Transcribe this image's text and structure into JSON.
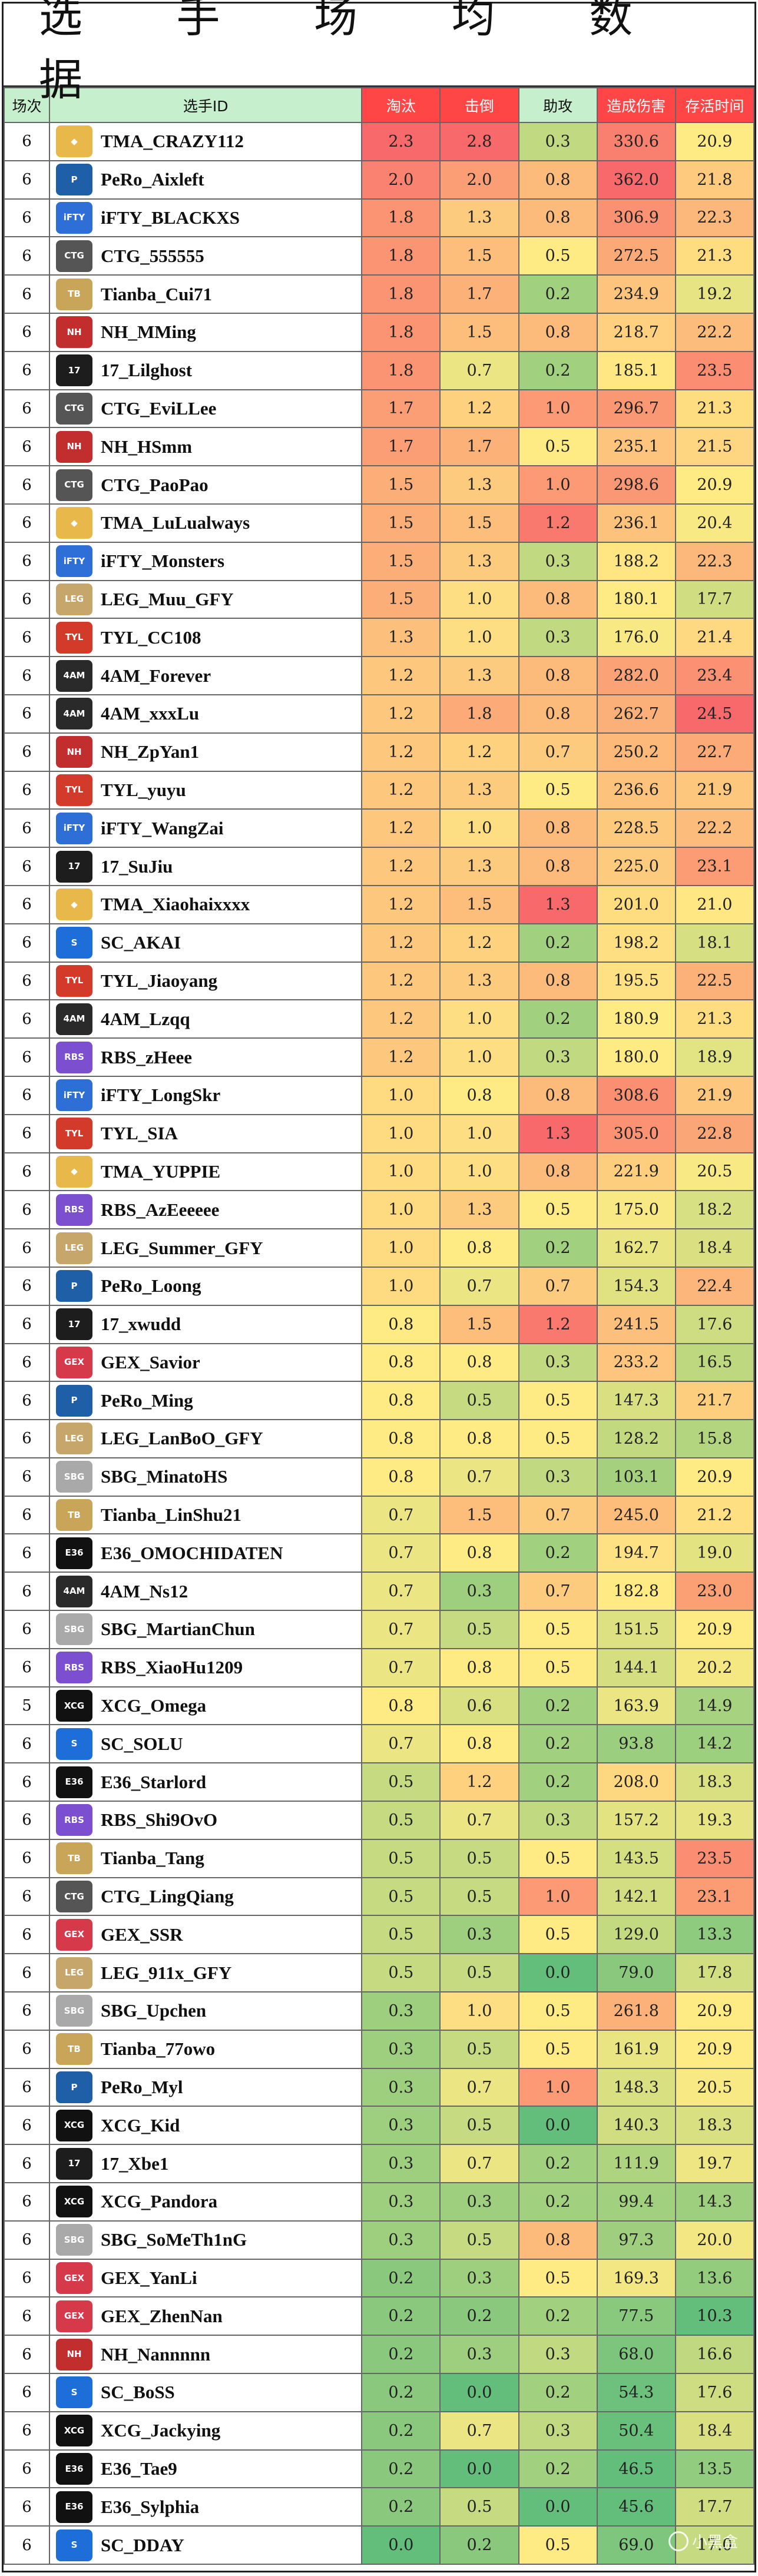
{
  "title": "选 手 场 均 数 据",
  "columns": [
    "场次",
    "选手ID",
    "淘汰",
    "击倒",
    "助攻",
    "造成伤害",
    "存活时间"
  ],
  "rows": [
    {
      "g": "6",
      "id": "TMA_CRAZY112",
      "team": "TMA",
      "k": "2.3",
      "d": "2.8",
      "a": "0.3",
      "dmg": "330.6",
      "t": "20.9"
    },
    {
      "g": "6",
      "id": "PeRo_Aixleft",
      "team": "PeRo",
      "k": "2.0",
      "d": "2.0",
      "a": "0.8",
      "dmg": "362.0",
      "t": "21.8"
    },
    {
      "g": "6",
      "id": "iFTY_BLACKXS",
      "team": "iFTY",
      "k": "1.8",
      "d": "1.3",
      "a": "0.8",
      "dmg": "306.9",
      "t": "22.3"
    },
    {
      "g": "6",
      "id": "CTG_555555",
      "team": "CTG",
      "k": "1.8",
      "d": "1.5",
      "a": "0.5",
      "dmg": "272.5",
      "t": "21.3"
    },
    {
      "g": "6",
      "id": "Tianba_Cui71",
      "team": "Tianba",
      "k": "1.8",
      "d": "1.7",
      "a": "0.2",
      "dmg": "234.9",
      "t": "19.2"
    },
    {
      "g": "6",
      "id": "NH_MMing",
      "team": "NH",
      "k": "1.8",
      "d": "1.5",
      "a": "0.8",
      "dmg": "218.7",
      "t": "22.2"
    },
    {
      "g": "6",
      "id": "17_Lilghost",
      "team": "17",
      "k": "1.8",
      "d": "0.7",
      "a": "0.2",
      "dmg": "185.1",
      "t": "23.5"
    },
    {
      "g": "6",
      "id": "CTG_EviLLee",
      "team": "CTG",
      "k": "1.7",
      "d": "1.2",
      "a": "1.0",
      "dmg": "296.7",
      "t": "21.3"
    },
    {
      "g": "6",
      "id": "NH_HSmm",
      "team": "NH",
      "k": "1.7",
      "d": "1.7",
      "a": "0.5",
      "dmg": "235.1",
      "t": "21.5"
    },
    {
      "g": "6",
      "id": "CTG_PaoPao",
      "team": "CTG",
      "k": "1.5",
      "d": "1.3",
      "a": "1.0",
      "dmg": "298.6",
      "t": "20.9"
    },
    {
      "g": "6",
      "id": "TMA_LuLualways",
      "team": "TMA",
      "k": "1.5",
      "d": "1.5",
      "a": "1.2",
      "dmg": "236.1",
      "t": "20.4"
    },
    {
      "g": "6",
      "id": "iFTY_Monsters",
      "team": "iFTY",
      "k": "1.5",
      "d": "1.3",
      "a": "0.3",
      "dmg": "188.2",
      "t": "22.3"
    },
    {
      "g": "6",
      "id": "LEG_Muu_GFY",
      "team": "LEG",
      "k": "1.5",
      "d": "1.0",
      "a": "0.8",
      "dmg": "180.1",
      "t": "17.7"
    },
    {
      "g": "6",
      "id": "TYL_CC108",
      "team": "TYL",
      "k": "1.3",
      "d": "1.0",
      "a": "0.3",
      "dmg": "176.0",
      "t": "21.4"
    },
    {
      "g": "6",
      "id": "4AM_Forever",
      "team": "4AM",
      "k": "1.2",
      "d": "1.3",
      "a": "0.8",
      "dmg": "282.0",
      "t": "23.4"
    },
    {
      "g": "6",
      "id": "4AM_xxxLu",
      "team": "4AM",
      "k": "1.2",
      "d": "1.8",
      "a": "0.8",
      "dmg": "262.7",
      "t": "24.5"
    },
    {
      "g": "6",
      "id": "NH_ZpYan1",
      "team": "NH",
      "k": "1.2",
      "d": "1.2",
      "a": "0.7",
      "dmg": "250.2",
      "t": "22.7"
    },
    {
      "g": "6",
      "id": "TYL_yuyu",
      "team": "TYL",
      "k": "1.2",
      "d": "1.3",
      "a": "0.5",
      "dmg": "236.6",
      "t": "21.9"
    },
    {
      "g": "6",
      "id": "iFTY_WangZai",
      "team": "iFTY",
      "k": "1.2",
      "d": "1.0",
      "a": "0.8",
      "dmg": "228.5",
      "t": "22.2"
    },
    {
      "g": "6",
      "id": "17_SuJiu",
      "team": "17",
      "k": "1.2",
      "d": "1.3",
      "a": "0.8",
      "dmg": "225.0",
      "t": "23.1"
    },
    {
      "g": "6",
      "id": "TMA_Xiaohaixxxx",
      "team": "TMA",
      "k": "1.2",
      "d": "1.5",
      "a": "1.3",
      "dmg": "201.0",
      "t": "21.0"
    },
    {
      "g": "6",
      "id": "SC_AKAI",
      "team": "SC",
      "k": "1.2",
      "d": "1.2",
      "a": "0.2",
      "dmg": "198.2",
      "t": "18.1"
    },
    {
      "g": "6",
      "id": "TYL_Jiaoyang",
      "team": "TYL",
      "k": "1.2",
      "d": "1.3",
      "a": "0.8",
      "dmg": "195.5",
      "t": "22.5"
    },
    {
      "g": "6",
      "id": "4AM_Lzqq",
      "team": "4AM",
      "k": "1.2",
      "d": "1.0",
      "a": "0.2",
      "dmg": "180.9",
      "t": "21.3"
    },
    {
      "g": "6",
      "id": "RBS_zHeee",
      "team": "RBS",
      "k": "1.2",
      "d": "1.0",
      "a": "0.3",
      "dmg": "180.0",
      "t": "18.9"
    },
    {
      "g": "6",
      "id": "iFTY_LongSkr",
      "team": "iFTY",
      "k": "1.0",
      "d": "0.8",
      "a": "0.8",
      "dmg": "308.6",
      "t": "21.9"
    },
    {
      "g": "6",
      "id": "TYL_SIA",
      "team": "TYL",
      "k": "1.0",
      "d": "1.0",
      "a": "1.3",
      "dmg": "305.0",
      "t": "22.8"
    },
    {
      "g": "6",
      "id": "TMA_YUPPIE",
      "team": "TMA",
      "k": "1.0",
      "d": "1.0",
      "a": "0.8",
      "dmg": "221.9",
      "t": "20.5"
    },
    {
      "g": "6",
      "id": "RBS_AzEeeeee",
      "team": "RBS",
      "k": "1.0",
      "d": "1.3",
      "a": "0.5",
      "dmg": "175.0",
      "t": "18.2"
    },
    {
      "g": "6",
      "id": "LEG_Summer_GFY",
      "team": "LEG",
      "k": "1.0",
      "d": "0.8",
      "a": "0.2",
      "dmg": "162.7",
      "t": "18.4"
    },
    {
      "g": "6",
      "id": "PeRo_Loong",
      "team": "PeRo",
      "k": "1.0",
      "d": "0.7",
      "a": "0.7",
      "dmg": "154.3",
      "t": "22.4"
    },
    {
      "g": "6",
      "id": "17_xwudd",
      "team": "17",
      "k": "0.8",
      "d": "1.5",
      "a": "1.2",
      "dmg": "241.5",
      "t": "17.6"
    },
    {
      "g": "6",
      "id": "GEX_Savior",
      "team": "GEX",
      "k": "0.8",
      "d": "0.8",
      "a": "0.3",
      "dmg": "233.2",
      "t": "16.5"
    },
    {
      "g": "6",
      "id": "PeRo_Ming",
      "team": "PeRo",
      "k": "0.8",
      "d": "0.5",
      "a": "0.5",
      "dmg": "147.3",
      "t": "21.7"
    },
    {
      "g": "6",
      "id": "LEG_LanBoO_GFY",
      "team": "LEG",
      "k": "0.8",
      "d": "0.8",
      "a": "0.5",
      "dmg": "128.2",
      "t": "15.8"
    },
    {
      "g": "6",
      "id": "SBG_MinatoHS",
      "team": "SBG",
      "k": "0.8",
      "d": "0.7",
      "a": "0.3",
      "dmg": "103.1",
      "t": "20.9"
    },
    {
      "g": "6",
      "id": "Tianba_LinShu21",
      "team": "Tianba",
      "k": "0.7",
      "d": "1.5",
      "a": "0.7",
      "dmg": "245.0",
      "t": "21.2"
    },
    {
      "g": "6",
      "id": "E36_OMOCHIDATEN",
      "team": "E36",
      "k": "0.7",
      "d": "0.8",
      "a": "0.2",
      "dmg": "194.7",
      "t": "19.0"
    },
    {
      "g": "6",
      "id": "4AM_Ns12",
      "team": "4AM",
      "k": "0.7",
      "d": "0.3",
      "a": "0.7",
      "dmg": "182.8",
      "t": "23.0"
    },
    {
      "g": "6",
      "id": "SBG_MartianChun",
      "team": "SBG",
      "k": "0.7",
      "d": "0.5",
      "a": "0.5",
      "dmg": "151.5",
      "t": "20.9"
    },
    {
      "g": "6",
      "id": "RBS_XiaoHu1209",
      "team": "RBS",
      "k": "0.7",
      "d": "0.8",
      "a": "0.5",
      "dmg": "144.1",
      "t": "20.2"
    },
    {
      "g": "5",
      "id": "XCG_Omega",
      "team": "XCG",
      "k": "0.8",
      "d": "0.6",
      "a": "0.2",
      "dmg": "163.9",
      "t": "14.9"
    },
    {
      "g": "6",
      "id": "SC_SOLU",
      "team": "SC",
      "k": "0.7",
      "d": "0.8",
      "a": "0.2",
      "dmg": "93.8",
      "t": "14.2"
    },
    {
      "g": "6",
      "id": "E36_Starlord",
      "team": "E36",
      "k": "0.5",
      "d": "1.2",
      "a": "0.2",
      "dmg": "208.0",
      "t": "18.3"
    },
    {
      "g": "6",
      "id": "RBS_Shi9OvO",
      "team": "RBS",
      "k": "0.5",
      "d": "0.7",
      "a": "0.3",
      "dmg": "157.2",
      "t": "19.3"
    },
    {
      "g": "6",
      "id": "Tianba_Tang",
      "team": "Tianba",
      "k": "0.5",
      "d": "0.5",
      "a": "0.5",
      "dmg": "143.5",
      "t": "23.5"
    },
    {
      "g": "6",
      "id": "CTG_LingQiang",
      "team": "CTG",
      "k": "0.5",
      "d": "0.5",
      "a": "1.0",
      "dmg": "142.1",
      "t": "23.1"
    },
    {
      "g": "6",
      "id": "GEX_SSR",
      "team": "GEX",
      "k": "0.5",
      "d": "0.3",
      "a": "0.5",
      "dmg": "129.0",
      "t": "13.3"
    },
    {
      "g": "6",
      "id": "LEG_911x_GFY",
      "team": "LEG",
      "k": "0.5",
      "d": "0.5",
      "a": "0.0",
      "dmg": "79.0",
      "t": "17.8"
    },
    {
      "g": "6",
      "id": "SBG_Upchen",
      "team": "SBG",
      "k": "0.3",
      "d": "1.0",
      "a": "0.5",
      "dmg": "261.8",
      "t": "20.9"
    },
    {
      "g": "6",
      "id": "Tianba_77owo",
      "team": "Tianba",
      "k": "0.3",
      "d": "0.5",
      "a": "0.5",
      "dmg": "161.9",
      "t": "20.9"
    },
    {
      "g": "6",
      "id": "PeRo_Myl",
      "team": "PeRo",
      "k": "0.3",
      "d": "0.7",
      "a": "1.0",
      "dmg": "148.3",
      "t": "20.5"
    },
    {
      "g": "6",
      "id": "XCG_Kid",
      "team": "XCG",
      "k": "0.3",
      "d": "0.5",
      "a": "0.0",
      "dmg": "140.3",
      "t": "18.3"
    },
    {
      "g": "6",
      "id": "17_Xbe1",
      "team": "17",
      "k": "0.3",
      "d": "0.7",
      "a": "0.2",
      "dmg": "111.9",
      "t": "19.7"
    },
    {
      "g": "6",
      "id": "XCG_Pandora",
      "team": "XCG",
      "k": "0.3",
      "d": "0.3",
      "a": "0.2",
      "dmg": "99.4",
      "t": "14.3"
    },
    {
      "g": "6",
      "id": "SBG_SoMeTh1nG",
      "team": "SBG",
      "k": "0.3",
      "d": "0.5",
      "a": "0.8",
      "dmg": "97.3",
      "t": "20.0"
    },
    {
      "g": "6",
      "id": "GEX_YanLi",
      "team": "GEX",
      "k": "0.2",
      "d": "0.3",
      "a": "0.5",
      "dmg": "169.3",
      "t": "13.6"
    },
    {
      "g": "6",
      "id": "GEX_ZhenNan",
      "team": "GEX",
      "k": "0.2",
      "d": "0.2",
      "a": "0.2",
      "dmg": "77.5",
      "t": "10.3"
    },
    {
      "g": "6",
      "id": "NH_Nannnnn",
      "team": "NH",
      "k": "0.2",
      "d": "0.3",
      "a": "0.3",
      "dmg": "68.0",
      "t": "16.6"
    },
    {
      "g": "6",
      "id": "SC_BoSS",
      "team": "SC",
      "k": "0.2",
      "d": "0.0",
      "a": "0.2",
      "dmg": "54.3",
      "t": "17.6"
    },
    {
      "g": "6",
      "id": "XCG_Jackying",
      "team": "XCG",
      "k": "0.2",
      "d": "0.7",
      "a": "0.3",
      "dmg": "50.4",
      "t": "18.4"
    },
    {
      "g": "6",
      "id": "E36_Tae9",
      "team": "E36",
      "k": "0.2",
      "d": "0.0",
      "a": "0.2",
      "dmg": "46.5",
      "t": "13.5"
    },
    {
      "g": "6",
      "id": "E36_Sylphia",
      "team": "E36",
      "k": "0.2",
      "d": "0.5",
      "a": "0.0",
      "dmg": "45.6",
      "t": "17.7"
    },
    {
      "g": "6",
      "id": "SC_DDAY",
      "team": "SC",
      "k": "0.0",
      "d": "0.2",
      "a": "0.5",
      "dmg": "69.0",
      "t": "17.0"
    }
  ],
  "team_logos": {
    "TMA": {
      "abbr": "◆",
      "bg": "#e8b84a"
    },
    "PeRo": {
      "abbr": "P",
      "bg": "#1f5fa8"
    },
    "iFTY": {
      "abbr": "iFTY",
      "bg": "#2d6fd6"
    },
    "CTG": {
      "abbr": "CTG",
      "bg": "#555555"
    },
    "Tianba": {
      "abbr": "TB",
      "bg": "#c9a55a"
    },
    "NH": {
      "abbr": "NH",
      "bg": "#c22d2d"
    },
    "17": {
      "abbr": "17",
      "bg": "#1d1d1d"
    },
    "LEG": {
      "abbr": "LEG",
      "bg": "#c7a66b"
    },
    "TYL": {
      "abbr": "TYL",
      "bg": "#d33a2a"
    },
    "4AM": {
      "abbr": "4AM",
      "bg": "#2a2a2a"
    },
    "SC": {
      "abbr": "S",
      "bg": "#1e6ed9"
    },
    "RBS": {
      "abbr": "RBS",
      "bg": "#7b4fd0"
    },
    "GEX": {
      "abbr": "GEX",
      "bg": "#d63a4a"
    },
    "SBG": {
      "abbr": "SBG",
      "bg": "#a9a9a9"
    },
    "E36": {
      "abbr": "E36",
      "bg": "#111111"
    },
    "XCG": {
      "abbr": "XCG",
      "bg": "#111111"
    }
  },
  "watermark": "小黑盒",
  "colors": {
    "header_bg": "#c6efce",
    "header_hot": "#ff4646",
    "scale_low": "#63be7b",
    "scale_mid": "#ffeb84",
    "scale_high": "#f8696b"
  }
}
